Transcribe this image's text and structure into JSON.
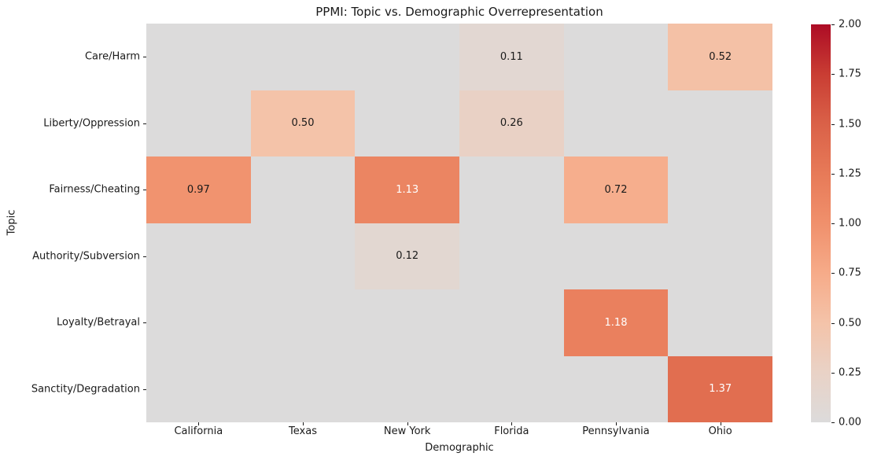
{
  "chart_data": {
    "type": "heatmap",
    "title": "PPMI: Topic vs. Demographic Overrepresentation",
    "xlabel": "Demographic",
    "ylabel": "Topic",
    "rows": [
      "Care/Harm",
      "Liberty/Oppression",
      "Fairness/Cheating",
      "Authority/Subversion",
      "Loyalty/Betrayal",
      "Sanctity/Degradation"
    ],
    "columns": [
      "California",
      "Texas",
      "New York",
      "Florida",
      "Pennsylvania",
      "Ohio"
    ],
    "values": [
      [
        0,
        0,
        0,
        0.11,
        0,
        0.52
      ],
      [
        0,
        0.5,
        0,
        0.26,
        0,
        0
      ],
      [
        0.97,
        0,
        1.13,
        0,
        0.72,
        0
      ],
      [
        0,
        0,
        0.12,
        0,
        0,
        0
      ],
      [
        0,
        0,
        0,
        0,
        1.18,
        0
      ],
      [
        0,
        0,
        0,
        0,
        0,
        1.37
      ]
    ],
    "vmin": 0,
    "vmax": 2,
    "annot_decimals": 2,
    "hide_zero_annotations": true,
    "grid": false,
    "legend_position": "right",
    "colorbar_tick_labels": [
      "0.00",
      "0.25",
      "0.50",
      "0.75",
      "1.00",
      "1.25",
      "1.50",
      "1.75",
      "2.00"
    ],
    "colormap_stops": [
      {
        "t": 0.0,
        "color": "#dcdbdb"
      },
      {
        "t": 0.125,
        "color": "#e9d2c6"
      },
      {
        "t": 0.25,
        "color": "#f4c3a9"
      },
      {
        "t": 0.375,
        "color": "#f6ab89"
      },
      {
        "t": 0.5,
        "color": "#f0906c"
      },
      {
        "t": 0.625,
        "color": "#e77a58"
      },
      {
        "t": 0.75,
        "color": "#da6148"
      },
      {
        "t": 0.875,
        "color": "#c93d33"
      },
      {
        "t": 1.0,
        "color": "#ad0c25"
      }
    ],
    "annotation_colors": {
      "dark": "#1a1a1a",
      "light": "#ffffff"
    },
    "light_text_threshold": 1.0
  }
}
